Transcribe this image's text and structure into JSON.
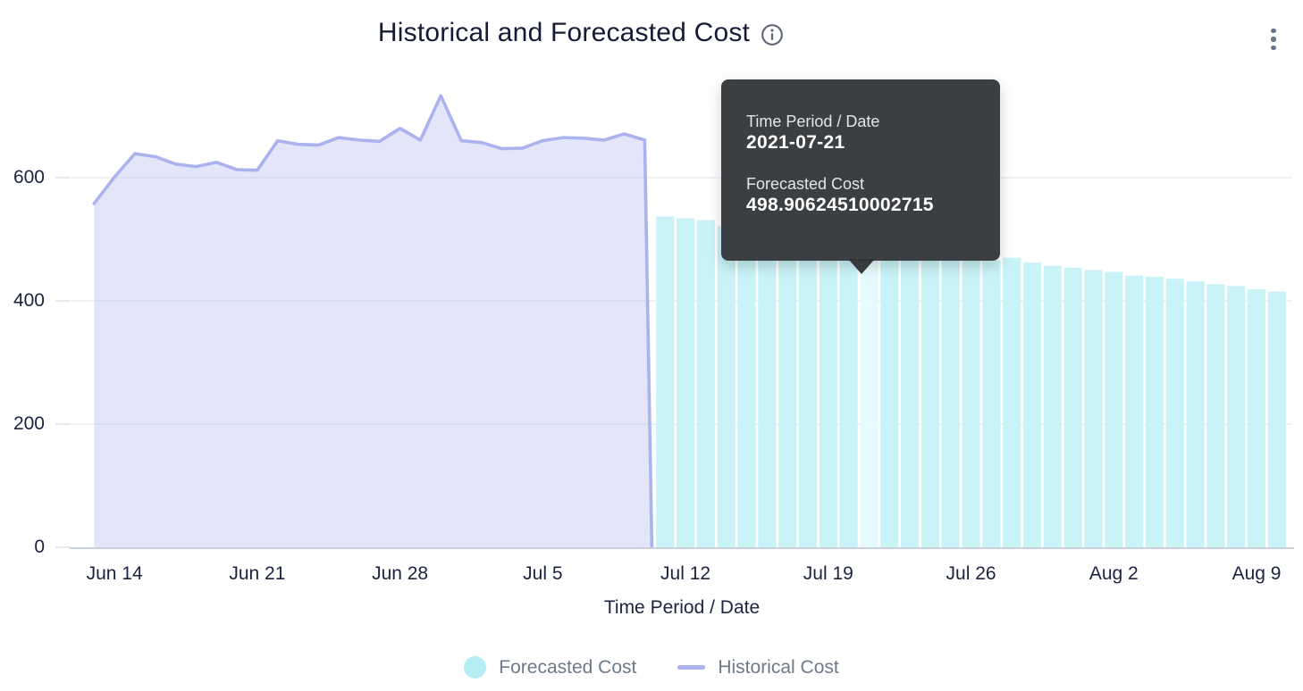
{
  "title": "Historical and Forecasted Cost",
  "tooltip": {
    "field_label": "Time Period / Date",
    "field_value": "2021-07-21",
    "series_label": "Forecasted Cost",
    "series_value": "498.90624510002715"
  },
  "legend": {
    "forecasted": "Forecasted Cost",
    "historical": "Historical Cost"
  },
  "colors": {
    "forecast_bar": "#c9f3f7",
    "forecast_bar_highlight": "#e6fbfd",
    "historical_line": "#aab3ee",
    "historical_fill": "rgba(170,179,238,0.33)",
    "gridline": "#e8eaef",
    "axis_line": "#c9d1e0",
    "tooltip_bg": "rgba(48,51,54,0.94)"
  },
  "chart_data": {
    "type": "mixed",
    "title": "Historical and Forecasted Cost",
    "xlabel": "Time Period / Date",
    "ylabel": "",
    "yticks": [
      0,
      200,
      400,
      600
    ],
    "ylim": [
      0,
      760
    ],
    "grid": true,
    "legend_position": "bottom",
    "x_start_date": "2021-06-13",
    "xticks": [
      {
        "label": "Jun 14",
        "date": "2021-06-14"
      },
      {
        "label": "Jun 21",
        "date": "2021-06-21"
      },
      {
        "label": "Jun 28",
        "date": "2021-06-28"
      },
      {
        "label": "Jul 5",
        "date": "2021-07-05"
      },
      {
        "label": "Jul 12",
        "date": "2021-07-12"
      },
      {
        "label": "Jul 19",
        "date": "2021-07-19"
      },
      {
        "label": "Jul 26",
        "date": "2021-07-26"
      },
      {
        "label": "Aug 2",
        "date": "2021-08-02"
      },
      {
        "label": "Aug 9",
        "date": "2021-08-09"
      }
    ],
    "series": [
      {
        "name": "Historical Cost",
        "type": "area",
        "dates": [
          "2021-06-13",
          "2021-06-14",
          "2021-06-15",
          "2021-06-16",
          "2021-06-17",
          "2021-06-18",
          "2021-06-19",
          "2021-06-20",
          "2021-06-21",
          "2021-06-22",
          "2021-06-23",
          "2021-06-24",
          "2021-06-25",
          "2021-06-26",
          "2021-06-27",
          "2021-06-28",
          "2021-06-29",
          "2021-06-30",
          "2021-07-01",
          "2021-07-02",
          "2021-07-03",
          "2021-07-04",
          "2021-07-05",
          "2021-07-06",
          "2021-07-07",
          "2021-07-08",
          "2021-07-09",
          "2021-07-10"
        ],
        "values": [
          558,
          601,
          639,
          634,
          622,
          618,
          625,
          613,
          612,
          660,
          654,
          653,
          665,
          661,
          659,
          680,
          661,
          733,
          660,
          657,
          647,
          648,
          660,
          665,
          664,
          661,
          671,
          661
        ]
      },
      {
        "name": "Forecasted Cost",
        "type": "bar",
        "dates": [
          "2021-07-11",
          "2021-07-12",
          "2021-07-13",
          "2021-07-14",
          "2021-07-15",
          "2021-07-16",
          "2021-07-17",
          "2021-07-18",
          "2021-07-19",
          "2021-07-20",
          "2021-07-21",
          "2021-07-22",
          "2021-07-23",
          "2021-07-24",
          "2021-07-25",
          "2021-07-26",
          "2021-07-27",
          "2021-07-28",
          "2021-07-29",
          "2021-07-30",
          "2021-07-31",
          "2021-08-01",
          "2021-08-02",
          "2021-08-03",
          "2021-08-04",
          "2021-08-05",
          "2021-08-06",
          "2021-08-07",
          "2021-08-08",
          "2021-08-09",
          "2021-08-10"
        ],
        "values": [
          537,
          534,
          531,
          521,
          514,
          510,
          507,
          504,
          501,
          500,
          498.90624510002715,
          494,
          490,
          487,
          483,
          478,
          465,
          470,
          462,
          457,
          454,
          450,
          447,
          441,
          439,
          436,
          432,
          427,
          424,
          419,
          415
        ],
        "highlight_date": "2021-07-21"
      }
    ],
    "active_point": {
      "date": "2021-07-21",
      "series": "Forecasted Cost",
      "value": 498.90624510002715
    }
  }
}
